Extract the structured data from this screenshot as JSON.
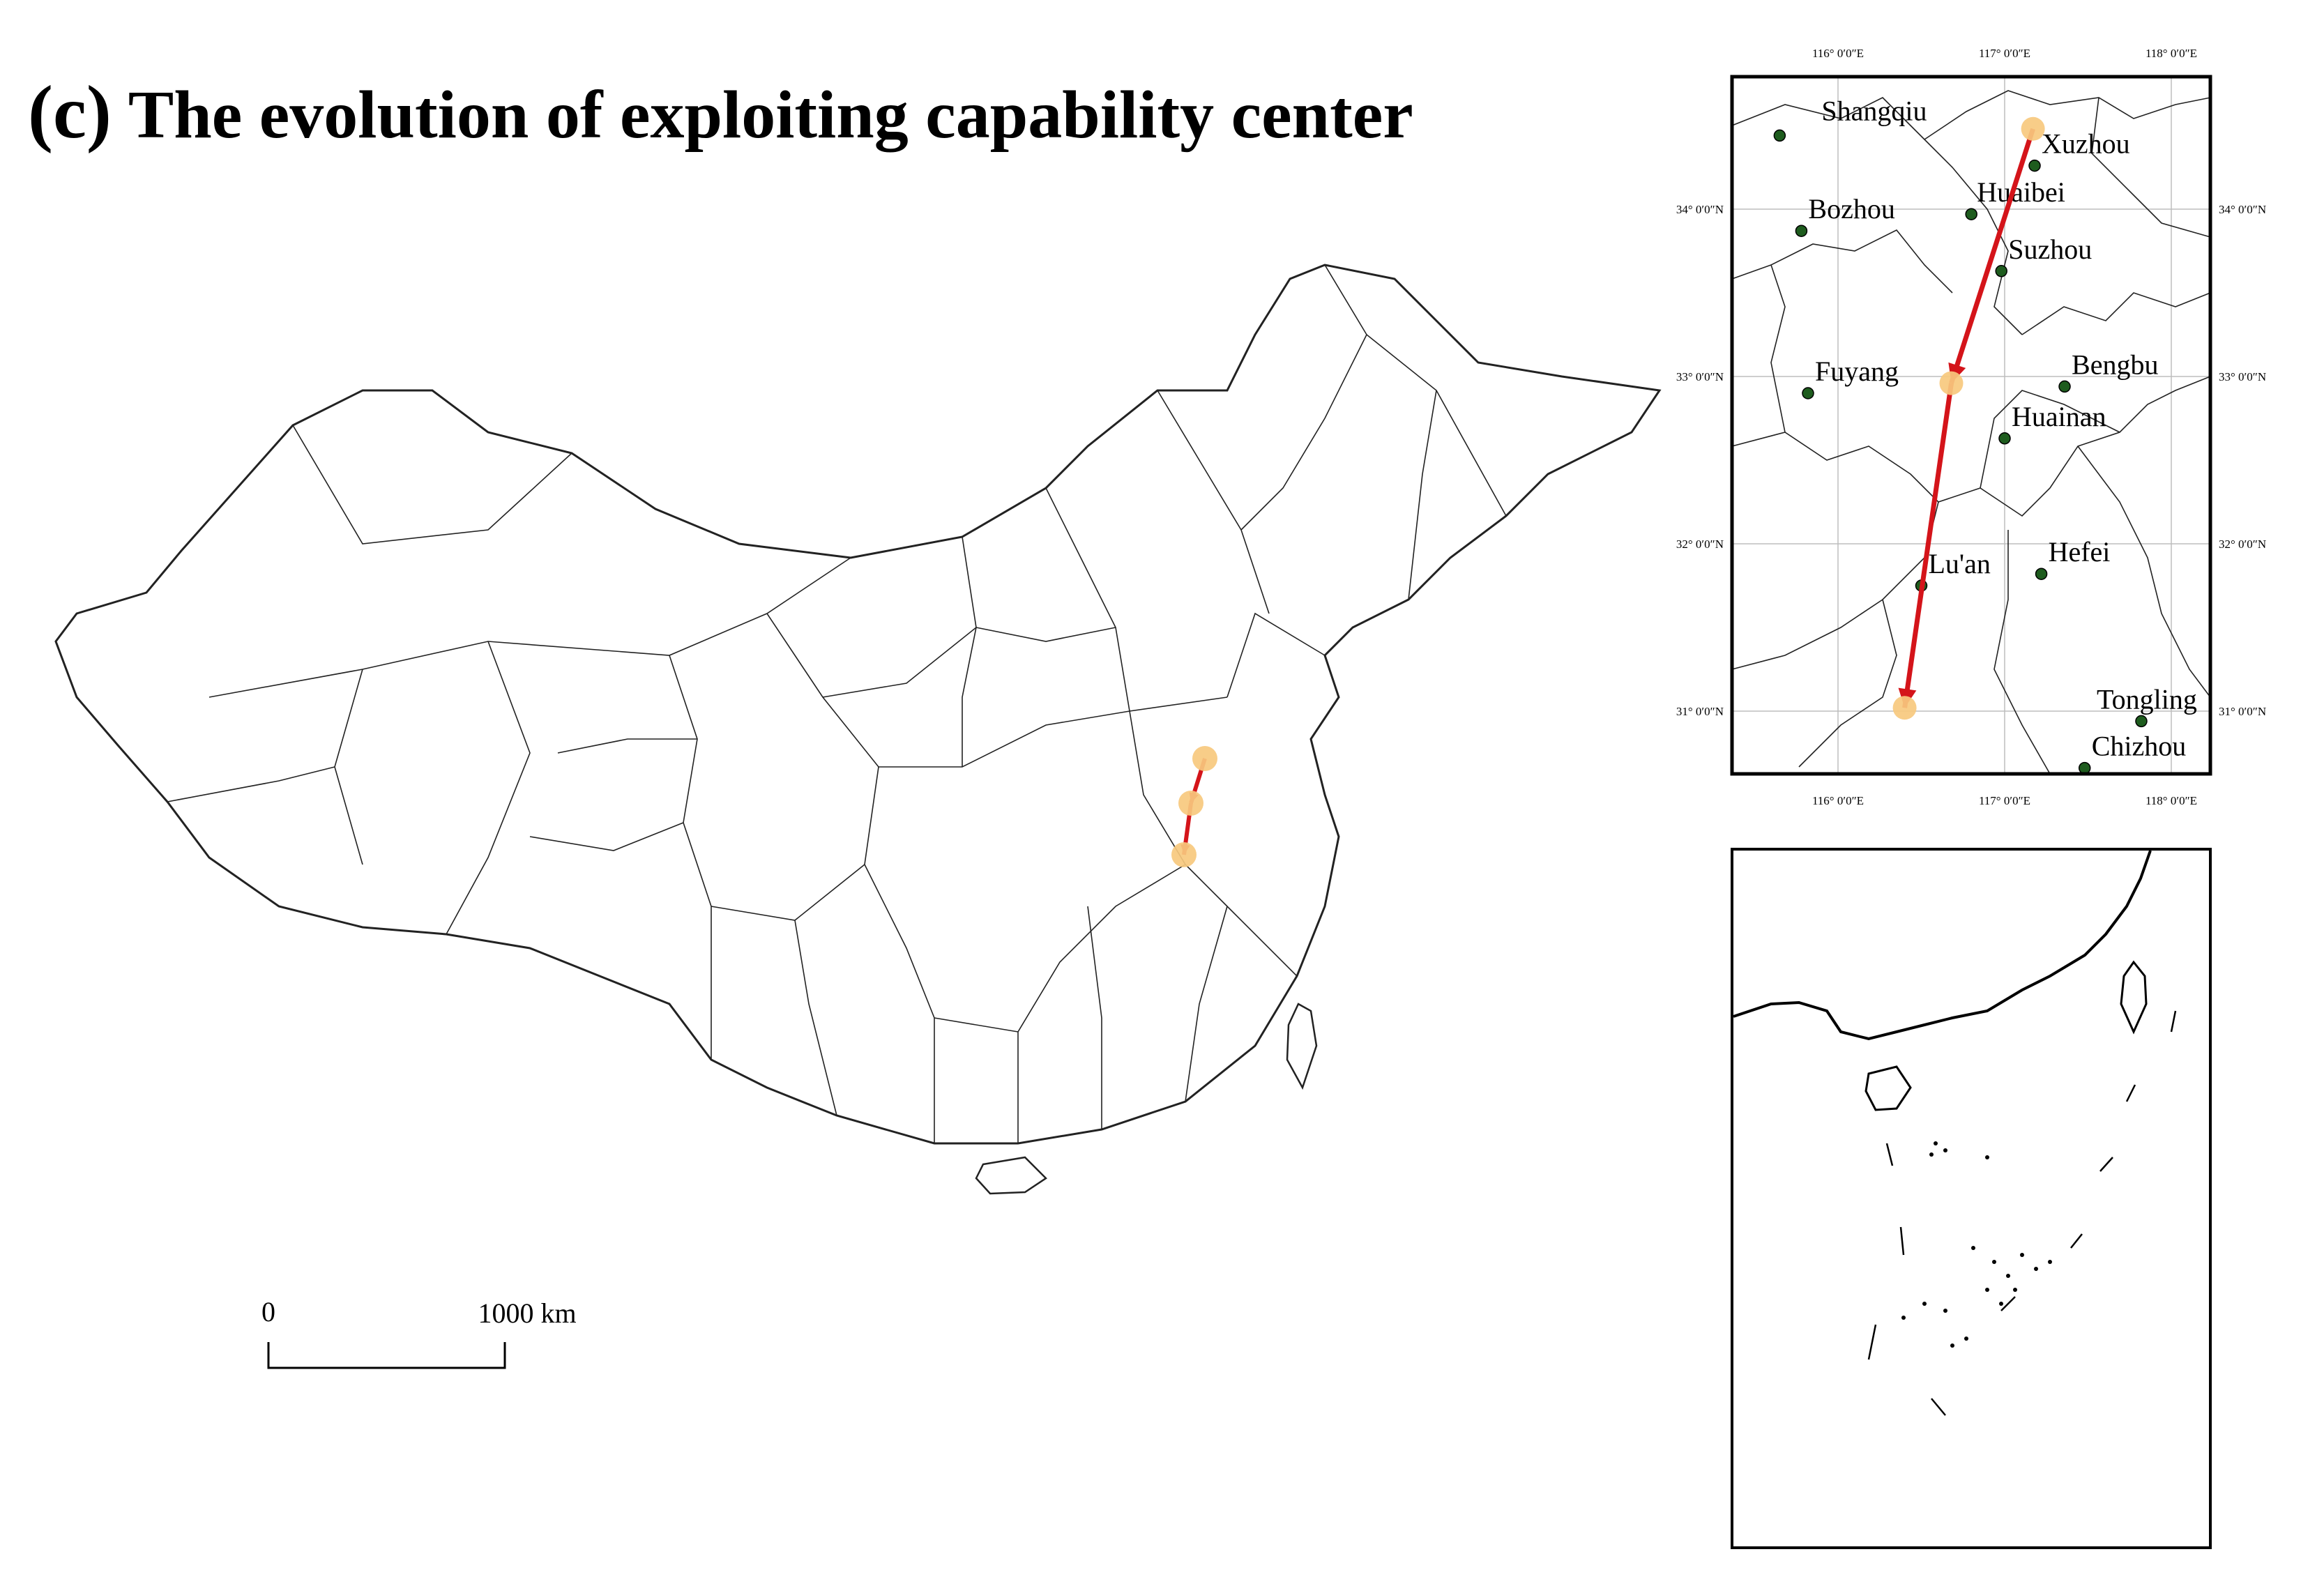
{
  "figure": {
    "tag": "(c)",
    "title": "The evolution of exploiting capability center"
  },
  "scale_bar": {
    "zero_label": "0",
    "end_label": "1000 km"
  },
  "inset_map": {
    "lon_ticks": [
      "116° 0′0″E",
      "117° 0′0″E",
      "118° 0′0″E"
    ],
    "lat_ticks": [
      "34° 0′0″N",
      "33° 0′0″N",
      "32° 0′0″N",
      "31° 0′0″N"
    ],
    "cities": [
      "Shangqiu",
      "Xuzhou",
      "Huaibei",
      "Bozhou",
      "Suzhou",
      "Fuyang",
      "Bengbu",
      "Huainan",
      "Lu'an",
      "Hefei",
      "Tongling",
      "Chizhou"
    ]
  },
  "colors": {
    "trajectory": "#d4141a",
    "center_point": "#f7c97e",
    "city_point": "#1e5c1e",
    "boundary": "#222222",
    "grid": "#bdbdbd"
  }
}
